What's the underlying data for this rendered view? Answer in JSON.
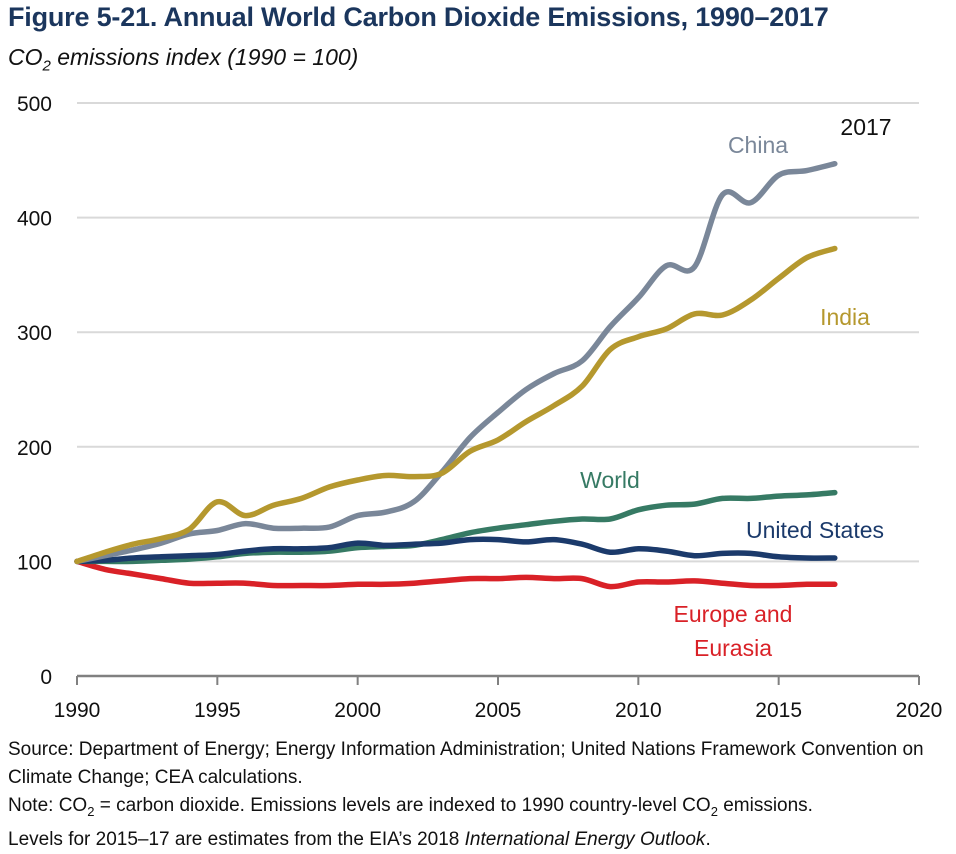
{
  "figure": {
    "title": "Figure 5-21. Annual World Carbon Dioxide Emissions, 1990–2017",
    "subtitle_prefix": "CO",
    "subtitle_sub": "2",
    "subtitle_suffix": " emissions index (1990 = 100)"
  },
  "notes": {
    "source": "Source: Department of Energy; Energy Information Administration; United Nations Framework Convention on Climate Change; CEA calculations.",
    "note_part1": "Note: CO",
    "note_sub1": "2",
    "note_part2": " =  carbon dioxide. Emissions levels are indexed to 1990 country-level CO",
    "note_sub2": "2",
    "note_part3": "  emissions.",
    "note_line2_prefix": "Levels for 2015–17 are estimates from the EIA’s 2018 ",
    "note_line2_italic": "International Energy Outlook",
    "note_line2_suffix": "."
  },
  "chart_data": {
    "type": "line",
    "title": "Figure 5-21. Annual World Carbon Dioxide Emissions, 1990–2017",
    "subtitle": "CO2 emissions index (1990 = 100)",
    "xlabel": "",
    "ylabel": "CO2 emissions index (1990 = 100)",
    "xlim": [
      1990,
      2020
    ],
    "ylim": [
      0,
      500
    ],
    "xticks": [
      "1990",
      "1995",
      "2000",
      "2005",
      "2010",
      "2015",
      "2020"
    ],
    "yticks": [
      "0",
      "100",
      "200",
      "300",
      "400",
      "500"
    ],
    "grid": true,
    "annotations": [
      {
        "text": "2017"
      }
    ],
    "x": [
      1990,
      1991,
      1992,
      1993,
      1994,
      1995,
      1996,
      1997,
      1998,
      1999,
      2000,
      2001,
      2002,
      2003,
      2004,
      2005,
      2006,
      2007,
      2008,
      2009,
      2010,
      2011,
      2012,
      2013,
      2014,
      2015,
      2016,
      2017
    ],
    "series": [
      {
        "name": "China",
        "label": "China",
        "color": "#7a8799",
        "values": [
          100,
          105,
          110,
          116,
          124,
          127,
          133,
          129,
          129,
          130,
          140,
          143,
          152,
          178,
          208,
          230,
          250,
          264,
          275,
          305,
          330,
          358,
          357,
          420,
          413,
          437,
          441,
          447
        ]
      },
      {
        "name": "India",
        "label": "India",
        "color": "#b5982e",
        "values": [
          100,
          108,
          115,
          120,
          128,
          152,
          140,
          149,
          155,
          165,
          171,
          175,
          174,
          177,
          196,
          206,
          222,
          236,
          253,
          285,
          296,
          303,
          316,
          315,
          328,
          347,
          365,
          373
        ]
      },
      {
        "name": "World",
        "label": "World",
        "color": "#367a64",
        "values": [
          100,
          100,
          100,
          101,
          102,
          104,
          107,
          108,
          108,
          109,
          112,
          113,
          114,
          119,
          125,
          129,
          132,
          135,
          137,
          137,
          145,
          149,
          150,
          155,
          155,
          157,
          158,
          160
        ]
      },
      {
        "name": "United States",
        "label": "United States",
        "color": "#1b3a6b",
        "values": [
          100,
          101,
          103,
          104,
          105,
          106,
          109,
          111,
          111,
          112,
          116,
          114,
          115,
          116,
          119,
          119,
          117,
          119,
          115,
          108,
          111,
          109,
          105,
          107,
          107,
          104,
          103,
          103
        ]
      },
      {
        "name": "Europe and Eurasia",
        "label": "Europe and Eurasia",
        "color": "#d92127",
        "values": [
          100,
          93,
          89,
          85,
          81,
          81,
          81,
          79,
          79,
          79,
          80,
          80,
          81,
          83,
          85,
          85,
          86,
          85,
          85,
          78,
          82,
          82,
          83,
          81,
          79,
          79,
          80,
          80
        ]
      }
    ]
  }
}
